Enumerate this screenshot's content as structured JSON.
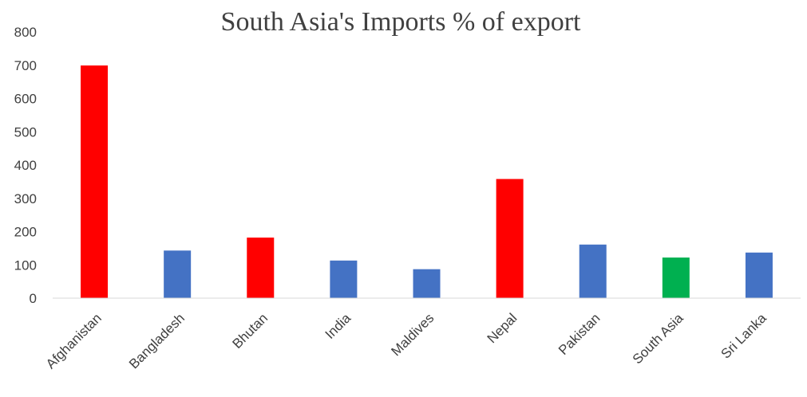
{
  "chart_data": {
    "type": "bar",
    "title": "South Asia's Imports % of export",
    "xlabel": "",
    "ylabel": "",
    "categories": [
      "Afghanistan",
      "Bangladesh",
      "Bhutan",
      "India",
      "Maldives",
      "Nepal",
      "Pakistan",
      "South Asia",
      "Sri Lanka"
    ],
    "values": [
      699,
      143,
      182,
      113,
      87,
      358,
      161,
      122,
      137
    ],
    "bar_colors": [
      "#ff0000",
      "#4472c4",
      "#ff0000",
      "#4472c4",
      "#4472c4",
      "#ff0000",
      "#4472c4",
      "#00b050",
      "#4472c4"
    ],
    "ylim": [
      0,
      800
    ],
    "yticks": [
      "0",
      "100",
      "200",
      "300",
      "400",
      "500",
      "600",
      "700",
      "800"
    ],
    "grid": false,
    "legend": "none"
  }
}
